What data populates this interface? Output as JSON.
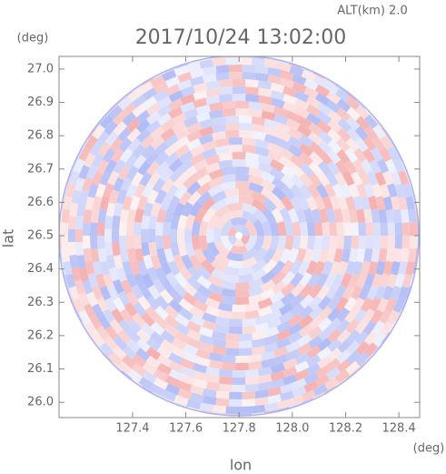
{
  "chart_data": {
    "type": "ppi",
    "title": "2017/10/24 13:02:00",
    "subtitle": "ALT(km) 2.0",
    "x_label": "lon",
    "y_label": "lat",
    "x_unit": "(deg)",
    "y_unit": "(deg)",
    "xlim": [
      127.124,
      128.478
    ],
    "ylim": [
      25.954,
      27.038
    ],
    "xticks": [
      127.4,
      127.6,
      127.8,
      {
        "value": 128,
        "label": "128.0"
      },
      128.2,
      128.4
    ],
    "yticks": [
      {
        "value": 26,
        "label": "26.0"
      },
      26.1,
      26.2,
      26.3,
      26.4,
      26.5,
      26.6,
      26.7,
      26.8,
      26.9,
      {
        "value": 27,
        "label": "27.0"
      }
    ],
    "colors": [
      "#f4a6a6",
      "#a9b4f4"
    ]
  }
}
